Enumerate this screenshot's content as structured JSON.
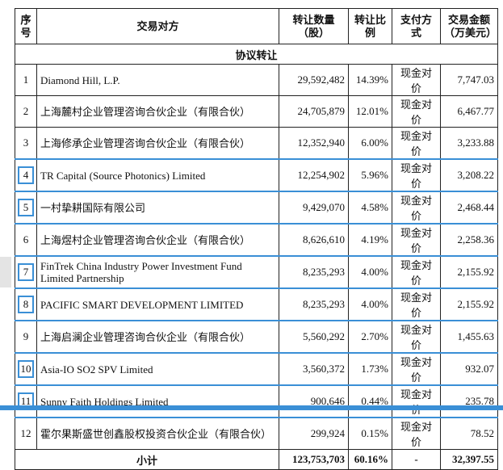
{
  "headers": {
    "no": "序号",
    "counterparty": "交易对方",
    "qty": "转让数量（股）",
    "ratio": "转让比例",
    "pay": "支付方式",
    "amount": "交易金额（万美元）"
  },
  "section_title": "协议转让",
  "rows": [
    {
      "no": "1",
      "name": "Diamond Hill, L.P.",
      "qty": "29,592,482",
      "ratio": "14.39%",
      "pay": "现金对价",
      "amount": "7,747.03"
    },
    {
      "no": "2",
      "name": "上海麓村企业管理咨询合伙企业（有限合伙）",
      "qty": "24,705,879",
      "ratio": "12.01%",
      "pay": "现金对价",
      "amount": "6,467.77"
    },
    {
      "no": "3",
      "name": "上海修承企业管理咨询合伙企业（有限合伙）",
      "qty": "12,352,940",
      "ratio": "6.00%",
      "pay": "现金对价",
      "amount": "3,233.88"
    },
    {
      "no": "4",
      "name": "TR Capital (Source Photonics) Limited",
      "qty": "12,254,902",
      "ratio": "5.96%",
      "pay": "现金对价",
      "amount": "3,208.22"
    },
    {
      "no": "5",
      "name": "一村挚耕国际有限公司",
      "qty": "9,429,070",
      "ratio": "4.58%",
      "pay": "现金对价",
      "amount": "2,468.44"
    },
    {
      "no": "6",
      "name": "上海煜村企业管理咨询合伙企业（有限合伙）",
      "qty": "8,626,610",
      "ratio": "4.19%",
      "pay": "现金对价",
      "amount": "2,258.36"
    },
    {
      "no": "7",
      "name": "FinTrek China Industry Power Investment Fund Limited Partnership",
      "qty": "8,235,293",
      "ratio": "4.00%",
      "pay": "现金对价",
      "amount": "2,155.92"
    },
    {
      "no": "8",
      "name": "PACIFIC SMART DEVELOPMENT LIMITED",
      "qty": "8,235,293",
      "ratio": "4.00%",
      "pay": "现金对价",
      "amount": "2,155.92"
    },
    {
      "no": "9",
      "name": "上海启澜企业管理咨询合伙企业（有限合伙）",
      "qty": "5,560,292",
      "ratio": "2.70%",
      "pay": "现金对价",
      "amount": "1,455.63"
    },
    {
      "no": "10",
      "name": "Asia-IO SO2 SPV Limited",
      "qty": "3,560,372",
      "ratio": "1.73%",
      "pay": "现金对价",
      "amount": "932.07"
    },
    {
      "no": "11",
      "name": "Sunny Faith Holdings Limited",
      "qty": "900,646",
      "ratio": "0.44%",
      "pay": "现金对价",
      "amount": "235.78"
    },
    {
      "no": "12",
      "name": "霍尔果斯盛世创鑫股权投资合伙企业（有限合伙）",
      "qty": "299,924",
      "ratio": "0.15%",
      "pay": "现金对价",
      "amount": "78.52"
    }
  ],
  "footer": {
    "label": "小计",
    "qty": "123,753,703",
    "ratio": "60.16%",
    "pay": "-",
    "amount": "32,397.55"
  }
}
